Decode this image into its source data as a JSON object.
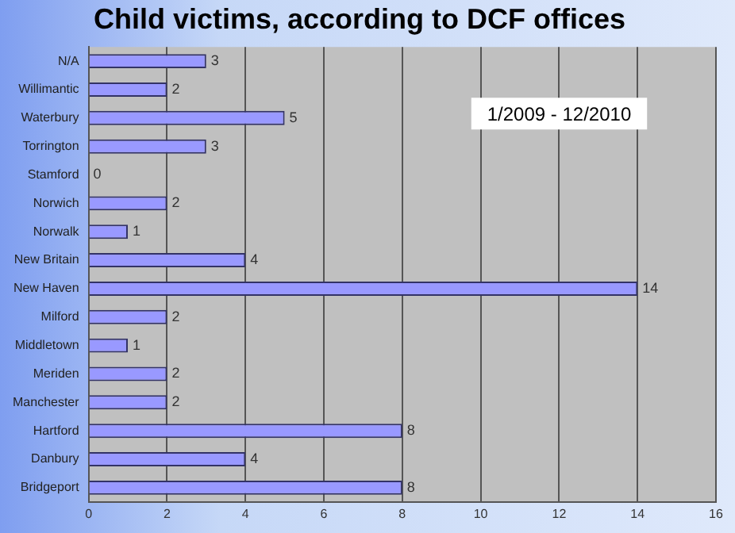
{
  "chart_data": {
    "type": "bar",
    "orientation": "horizontal",
    "title": "Child victims, according to DCF offices",
    "categories": [
      "N/A",
      "Willimantic",
      "Waterbury",
      "Torrington",
      "Stamford",
      "Norwich",
      "Norwalk",
      "New Britain",
      "New Haven",
      "Milford",
      "Middletown",
      "Meriden",
      "Manchester",
      "Hartford",
      "Danbury",
      "Bridgeport"
    ],
    "values": [
      3,
      2,
      5,
      3,
      0,
      2,
      1,
      4,
      14,
      2,
      1,
      2,
      2,
      8,
      4,
      8
    ],
    "color": "#9999ff",
    "xlim": [
      0,
      16
    ],
    "xticks": [
      0,
      2,
      4,
      6,
      8,
      10,
      12,
      14,
      16
    ],
    "grid": "x",
    "legend": false,
    "data_labels": true,
    "annotations": [
      "1/2009 - 12/2010"
    ]
  }
}
